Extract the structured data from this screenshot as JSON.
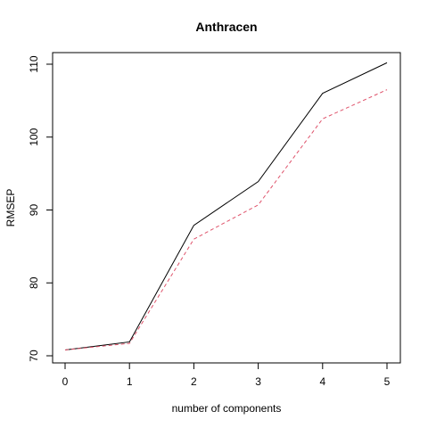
{
  "chart_data": {
    "type": "line",
    "title": "Anthracen",
    "xlabel": "number of components",
    "ylabel": "RMSEP",
    "x": [
      0,
      1,
      2,
      3,
      4,
      5
    ],
    "xlim": [
      0,
      5
    ],
    "ylim": [
      70,
      111
    ],
    "x_ticks": [
      0,
      1,
      2,
      3,
      4,
      5
    ],
    "y_ticks": [
      70,
      80,
      90,
      100,
      110
    ],
    "grid": false,
    "legend": "none",
    "series": [
      {
        "values": [
          70.8,
          71.9,
          87.9,
          93.9,
          106.0,
          110.2
        ],
        "color": "#000000",
        "dash": "solid"
      },
      {
        "values": [
          70.8,
          71.7,
          86.0,
          90.7,
          102.5,
          106.5
        ],
        "color": "#DF536B",
        "dash": "dashed"
      }
    ]
  }
}
